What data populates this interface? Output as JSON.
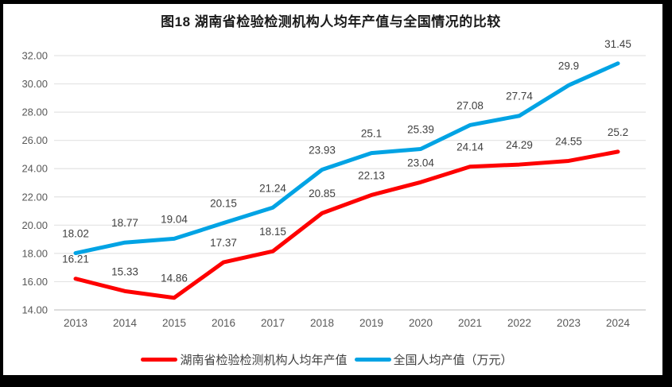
{
  "window": {
    "frame_color": "#000000",
    "background": "#ffffff"
  },
  "chart_data": {
    "type": "line",
    "title": "图18 湖南省检验检测机构人均年产值与全国情况的比较",
    "categories": [
      "2013",
      "2014",
      "2015",
      "2016",
      "2017",
      "2018",
      "2019",
      "2020",
      "2021",
      "2022",
      "2023",
      "2024"
    ],
    "series": [
      {
        "name": "湖南省检验检测机构人均年产值",
        "color": "#FE0000",
        "values": [
          16.21,
          15.33,
          14.86,
          17.37,
          18.15,
          20.85,
          22.13,
          23.04,
          24.14,
          24.29,
          24.55,
          25.2
        ],
        "point_labels": [
          "16.21",
          "15.33",
          "14.86",
          "17.37",
          "18.15",
          "20.85",
          "22.13",
          "23.04",
          "24.14",
          "24.29",
          "24.55",
          "25.2"
        ]
      },
      {
        "name": "全国人均产值（万元）",
        "color": "#00A3E4",
        "values": [
          18.02,
          18.77,
          19.04,
          20.15,
          21.24,
          23.93,
          25.1,
          25.39,
          27.08,
          27.74,
          29.9,
          31.45
        ],
        "point_labels": [
          "18.02",
          "18.77",
          "19.04",
          "20.15",
          "21.24",
          "23.93",
          "25.1",
          "25.39",
          "27.08",
          "27.74",
          "29.9",
          "31.45"
        ]
      }
    ],
    "xlabel": "",
    "ylabel": "",
    "ylim": [
      14,
      32
    ],
    "ytick_step": 2,
    "ytick_labels": [
      "14.00",
      "16.00",
      "18.00",
      "20.00",
      "22.00",
      "24.00",
      "26.00",
      "28.00",
      "30.00",
      "32.00"
    ],
    "grid": true,
    "legend_position": "bottom",
    "colors": {
      "gridline": "#E3E3E3",
      "axis_line": "#C6C6C6",
      "tick_label": "#595959",
      "data_label": "#3F3F3F",
      "title": "#1A1A1A",
      "legend_text": "#404040"
    }
  }
}
